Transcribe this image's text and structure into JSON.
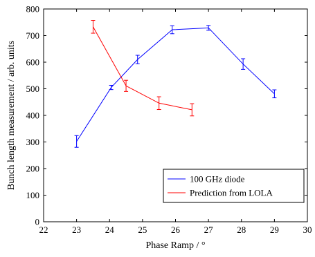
{
  "chart_data": {
    "type": "line",
    "xlabel": "Phase Ramp / °",
    "ylabel": "Bunch length measurement / arb. units",
    "xlim": [
      22,
      30
    ],
    "ylim": [
      0,
      800
    ],
    "xticks": [
      22,
      23,
      24,
      25,
      26,
      27,
      28,
      29,
      30
    ],
    "yticks": [
      0,
      100,
      200,
      300,
      400,
      500,
      600,
      700,
      800
    ],
    "grid": false,
    "legend_position": "bottom-right",
    "series": [
      {
        "name": "100 GHz diode",
        "color": "#0000ff",
        "x": [
          23.0,
          24.05,
          24.85,
          25.9,
          27.0,
          28.05,
          29.0
        ],
        "y": [
          302,
          505,
          610,
          722,
          729,
          593,
          481
        ],
        "err": [
          22,
          8,
          16,
          15,
          9,
          20,
          15
        ]
      },
      {
        "name": "Prediction from LOLA",
        "color": "#ff0000",
        "x": [
          23.5,
          24.5,
          25.5,
          26.5
        ],
        "y": [
          733,
          511,
          446,
          421
        ],
        "err": [
          24,
          21,
          24,
          23
        ]
      }
    ]
  }
}
